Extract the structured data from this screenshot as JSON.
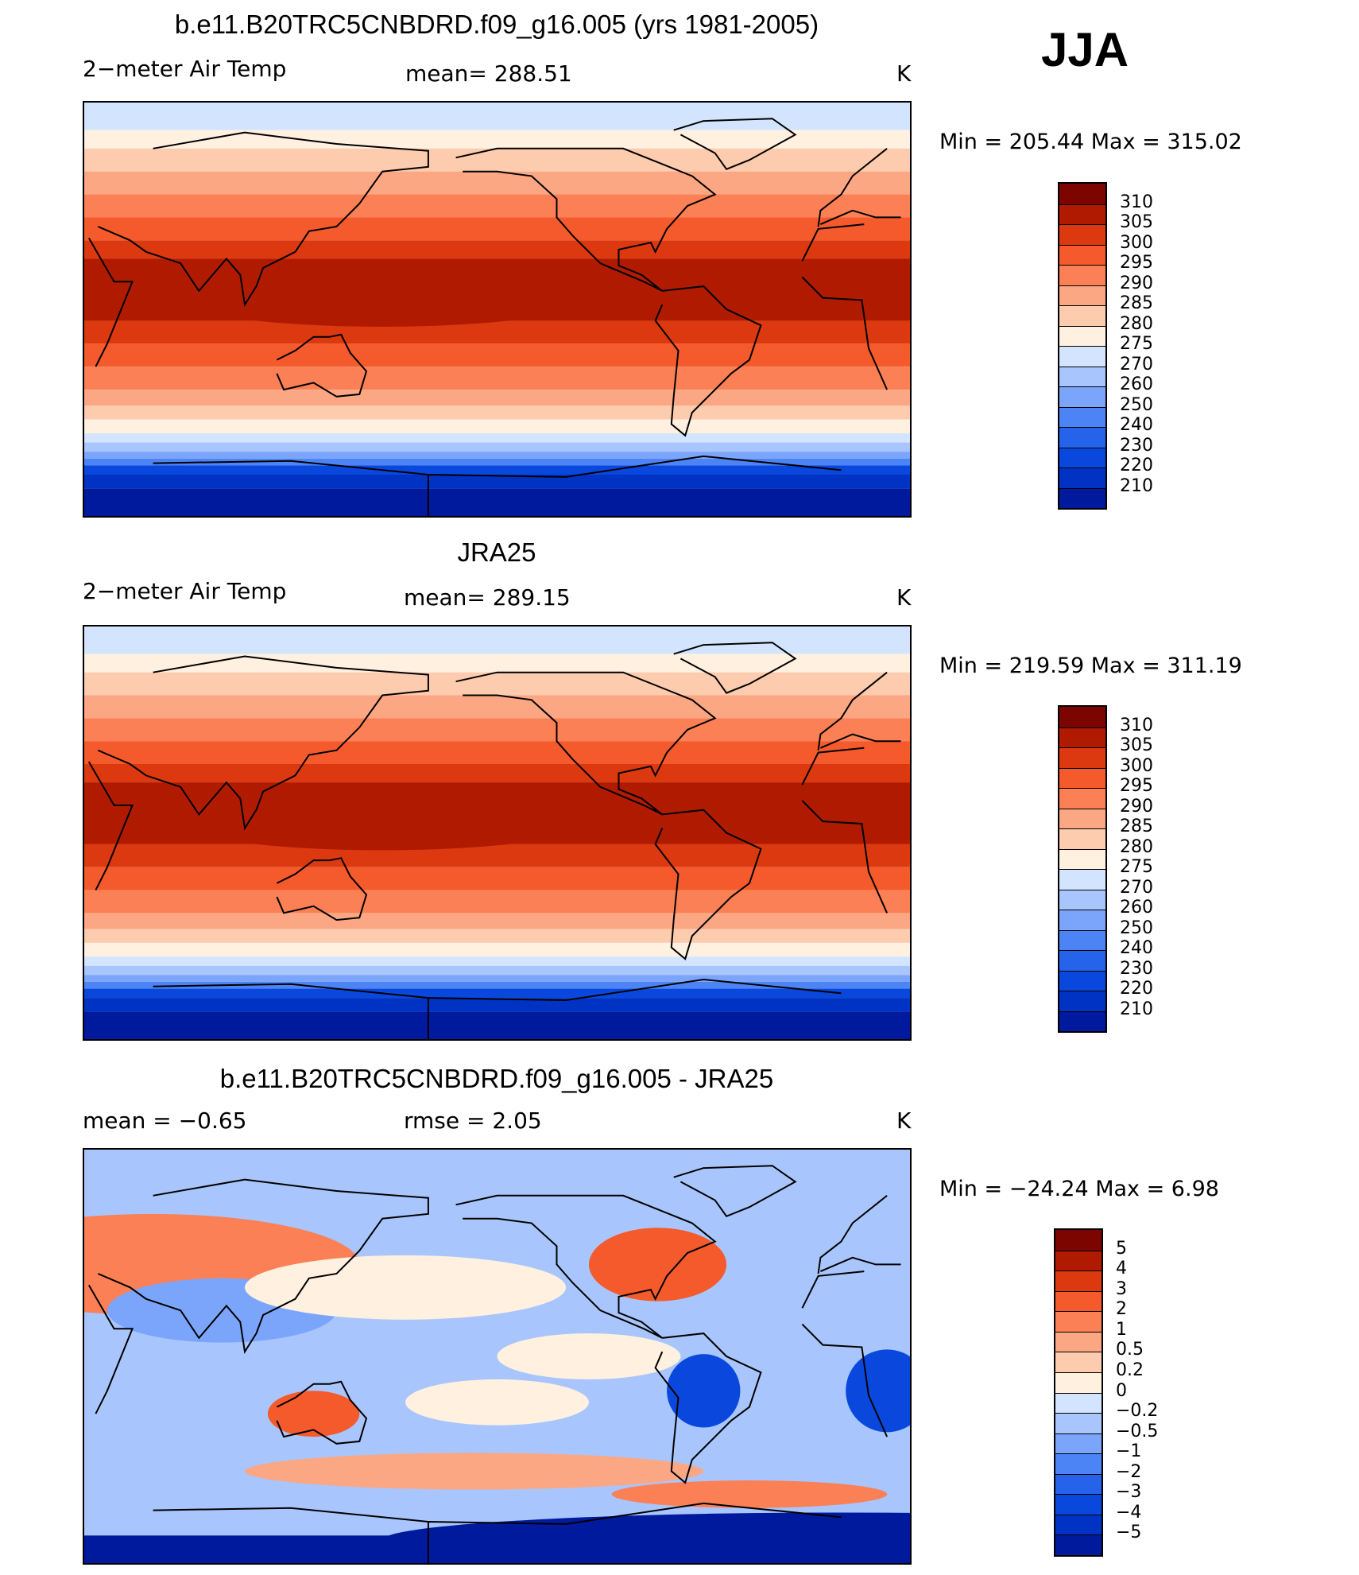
{
  "season": "JJA",
  "units": "K",
  "palettes": {
    "temp": [
      "#000c80",
      "#001a9e",
      "#0033c4",
      "#0a48dd",
      "#2563eb",
      "#4d84f5",
      "#7ba5fb",
      "#a8c6fd",
      "#d3e5fe",
      "#fff0e0",
      "#fdcbae",
      "#fca784",
      "#fb8055",
      "#f45a2c",
      "#dc3910",
      "#b01b00",
      "#7d0500"
    ],
    "diff": [
      "#000c80",
      "#001a9e",
      "#0033c4",
      "#0a48dd",
      "#2563eb",
      "#4d84f5",
      "#7ba5fb",
      "#a8c6fd",
      "#d3e5fe",
      "#fff0e0",
      "#fdcbae",
      "#fca784",
      "#fb8055",
      "#f45a2c",
      "#dc3910",
      "#b01b00",
      "#7d0500"
    ]
  },
  "chart_data": [
    {
      "type": "heatmap",
      "title": "b.e11.B20TRC5CNBDRD.f09_g16.005 (yrs 1981-2005)",
      "variable": "2−meter Air Temp",
      "mean_label": "mean=  288.51",
      "minmax_label": "Min  =  205.44  Max  =  315.02",
      "mean": 288.51,
      "min": 205.44,
      "max": 315.02,
      "levels": [
        "210",
        "220",
        "230",
        "240",
        "250",
        "260",
        "270",
        "275",
        "280",
        "285",
        "290",
        "295",
        "300",
        "305",
        "310"
      ]
    },
    {
      "type": "heatmap",
      "title": "JRA25",
      "variable": "2−meter Air Temp",
      "mean_label": "mean=  289.15",
      "minmax_label": "Min  =  219.59  Max  =  311.19",
      "mean": 289.15,
      "min": 219.59,
      "max": 311.19,
      "levels": [
        "210",
        "220",
        "230",
        "240",
        "250",
        "260",
        "270",
        "275",
        "280",
        "285",
        "290",
        "295",
        "300",
        "305",
        "310"
      ]
    },
    {
      "type": "heatmap",
      "title": "b.e11.B20TRC5CNBDRD.f09_g16.005 - JRA25",
      "mean_label": "mean  =     −0.65",
      "rmse_label": "rmse  =     2.05",
      "minmax_label": "Min  =  −24.24  Max  =     6.98",
      "mean": -0.65,
      "rmse": 2.05,
      "min": -24.24,
      "max": 6.98,
      "levels": [
        "−5",
        "−4",
        "−3",
        "−2",
        "−1",
        "−0.5",
        "−0.2",
        "0",
        "0.2",
        "0.5",
        "1",
        "2",
        "3",
        "4",
        "5"
      ]
    }
  ]
}
